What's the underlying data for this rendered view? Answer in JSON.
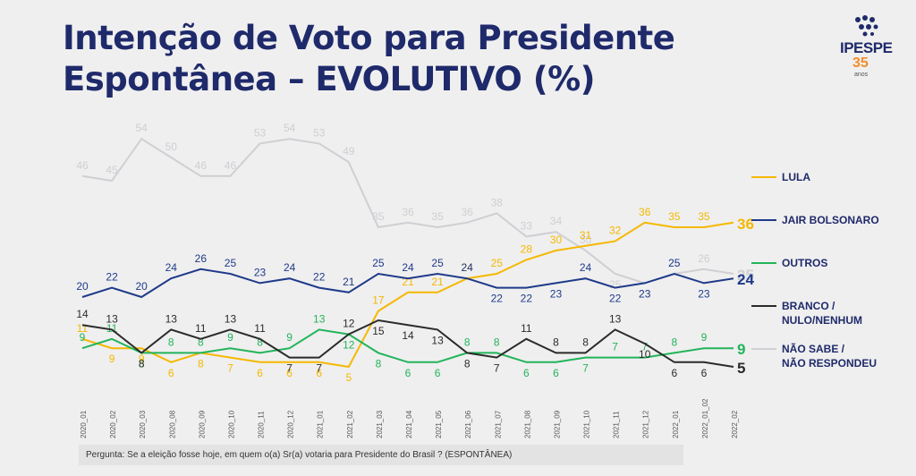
{
  "header": {
    "title_line1": "Intenção de Voto para Presidente",
    "title_line2": "Espontânea – EVOLUTIVO (%)"
  },
  "logo": {
    "brand": "IPESPE",
    "years": "35",
    "years_word": "anos"
  },
  "footer": {
    "question": "Pergunta:  Se a eleição fosse hoje, em quem o(a) Sr(a) votaria para  Presidente do Brasil ? (ESPONTÂNEA)"
  },
  "chart_data": {
    "type": "line",
    "title": "Intenção de Voto para Presidente Espontânea – EVOLUTIVO (%)",
    "x": [
      "2020_01",
      "2020_02",
      "2020_03",
      "2020_08",
      "2020_09",
      "2020_10",
      "2020_11",
      "2020_12",
      "2021_01",
      "2021_02",
      "2021_03",
      "2021_04",
      "2021_05",
      "2021_06",
      "2021_07",
      "2021_08",
      "2021_09",
      "2021_10",
      "2021_11",
      "2021_12",
      "2022_01",
      "2022_01_02",
      "2022_02"
    ],
    "ylim": [
      0,
      60
    ],
    "grid": false,
    "legend_position": "right",
    "series": [
      {
        "name": "LULA",
        "color": "#f5b800",
        "values": [
          11,
          9,
          9,
          6,
          8,
          7,
          6,
          6,
          6,
          5,
          17,
          21,
          21,
          24,
          25,
          28,
          30,
          31,
          32,
          36,
          35,
          35,
          36
        ]
      },
      {
        "name": "JAIR BOLSONARO",
        "color": "#1f3a8a",
        "values": [
          20,
          22,
          20,
          24,
          26,
          25,
          23,
          24,
          22,
          21,
          25,
          24,
          25,
          24,
          22,
          22,
          23,
          24,
          22,
          23,
          25,
          23,
          24
        ]
      },
      {
        "name": "OUTROS",
        "color": "#22b45a",
        "values": [
          9,
          11,
          8,
          8,
          8,
          9,
          8,
          9,
          13,
          12,
          8,
          6,
          6,
          8,
          8,
          6,
          6,
          7,
          7,
          7,
          8,
          9,
          9
        ]
      },
      {
        "name": "BRANCO / NULO/NENHUM",
        "color": "#2b2b2b",
        "values": [
          14,
          13,
          8,
          13,
          11,
          13,
          11,
          7,
          7,
          12,
          15,
          14,
          13,
          8,
          7,
          11,
          8,
          8,
          13,
          10,
          6,
          6,
          5
        ]
      },
      {
        "name": "NÃO SABE / NÃO RESPONDEU",
        "color": "#cfcfd4",
        "values": [
          46,
          45,
          54,
          50,
          46,
          46,
          53,
          54,
          53,
          49,
          35,
          36,
          35,
          36,
          38,
          33,
          34,
          30,
          25,
          23,
          25,
          26,
          25
        ]
      }
    ]
  }
}
